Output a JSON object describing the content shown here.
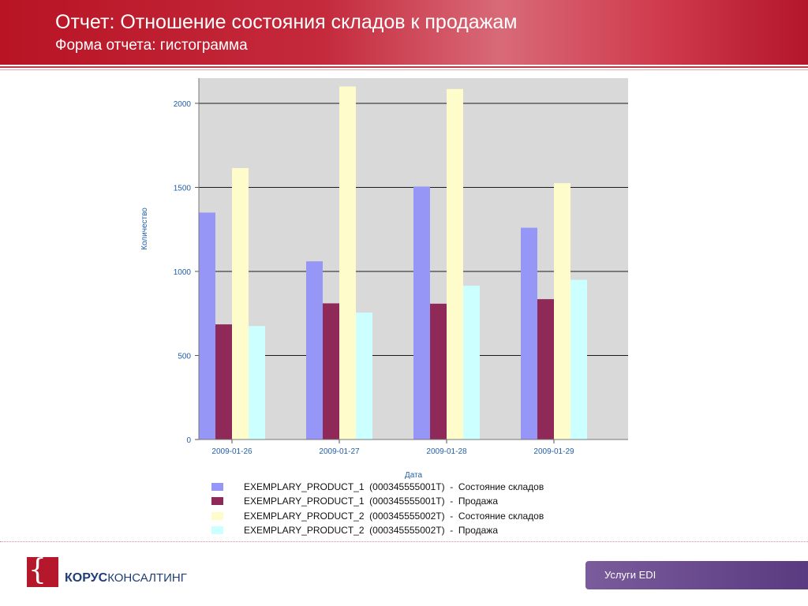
{
  "header": {
    "title": "Отчет: Отношение состояния складов к продажам",
    "subtitle": "Форма отчета: гистограмма"
  },
  "chart_data": {
    "type": "bar",
    "categories": [
      "2009-01-26",
      "2009-01-27",
      "2009-01-28",
      "2009-01-29"
    ],
    "series": [
      {
        "name": "EXEMPLARY_PRODUCT_1  (000345555001T)  -  Состояние складов",
        "color": "#9696f7",
        "values": [
          1350,
          1060,
          1505,
          1260
        ]
      },
      {
        "name": "EXEMPLARY_PRODUCT_1  (000345555001T)  -  Продажа",
        "color": "#8f2a58",
        "values": [
          685,
          810,
          808,
          835
        ]
      },
      {
        "name": "EXEMPLARY_PRODUCT_2  (000345555002T)  -  Состояние складов",
        "color": "#fffccc",
        "values": [
          1615,
          2100,
          2085,
          1525
        ]
      },
      {
        "name": "EXEMPLARY_PRODUCT_2  (000345555002T)  -  Продажа",
        "color": "#ccffff",
        "values": [
          675,
          755,
          915,
          950
        ]
      }
    ],
    "xlabel": "Дата",
    "ylabel": "Количество",
    "yticks": [
      0,
      500,
      1000,
      1500,
      2000
    ],
    "ylim": [
      0,
      2150
    ],
    "grid": true,
    "legend": "bottom"
  },
  "footer": {
    "logo_bold": "КОРУС",
    "logo_normal": "КОНСАЛТИНГ",
    "logo_glyph": "{",
    "service_label": "Услуги EDI"
  }
}
